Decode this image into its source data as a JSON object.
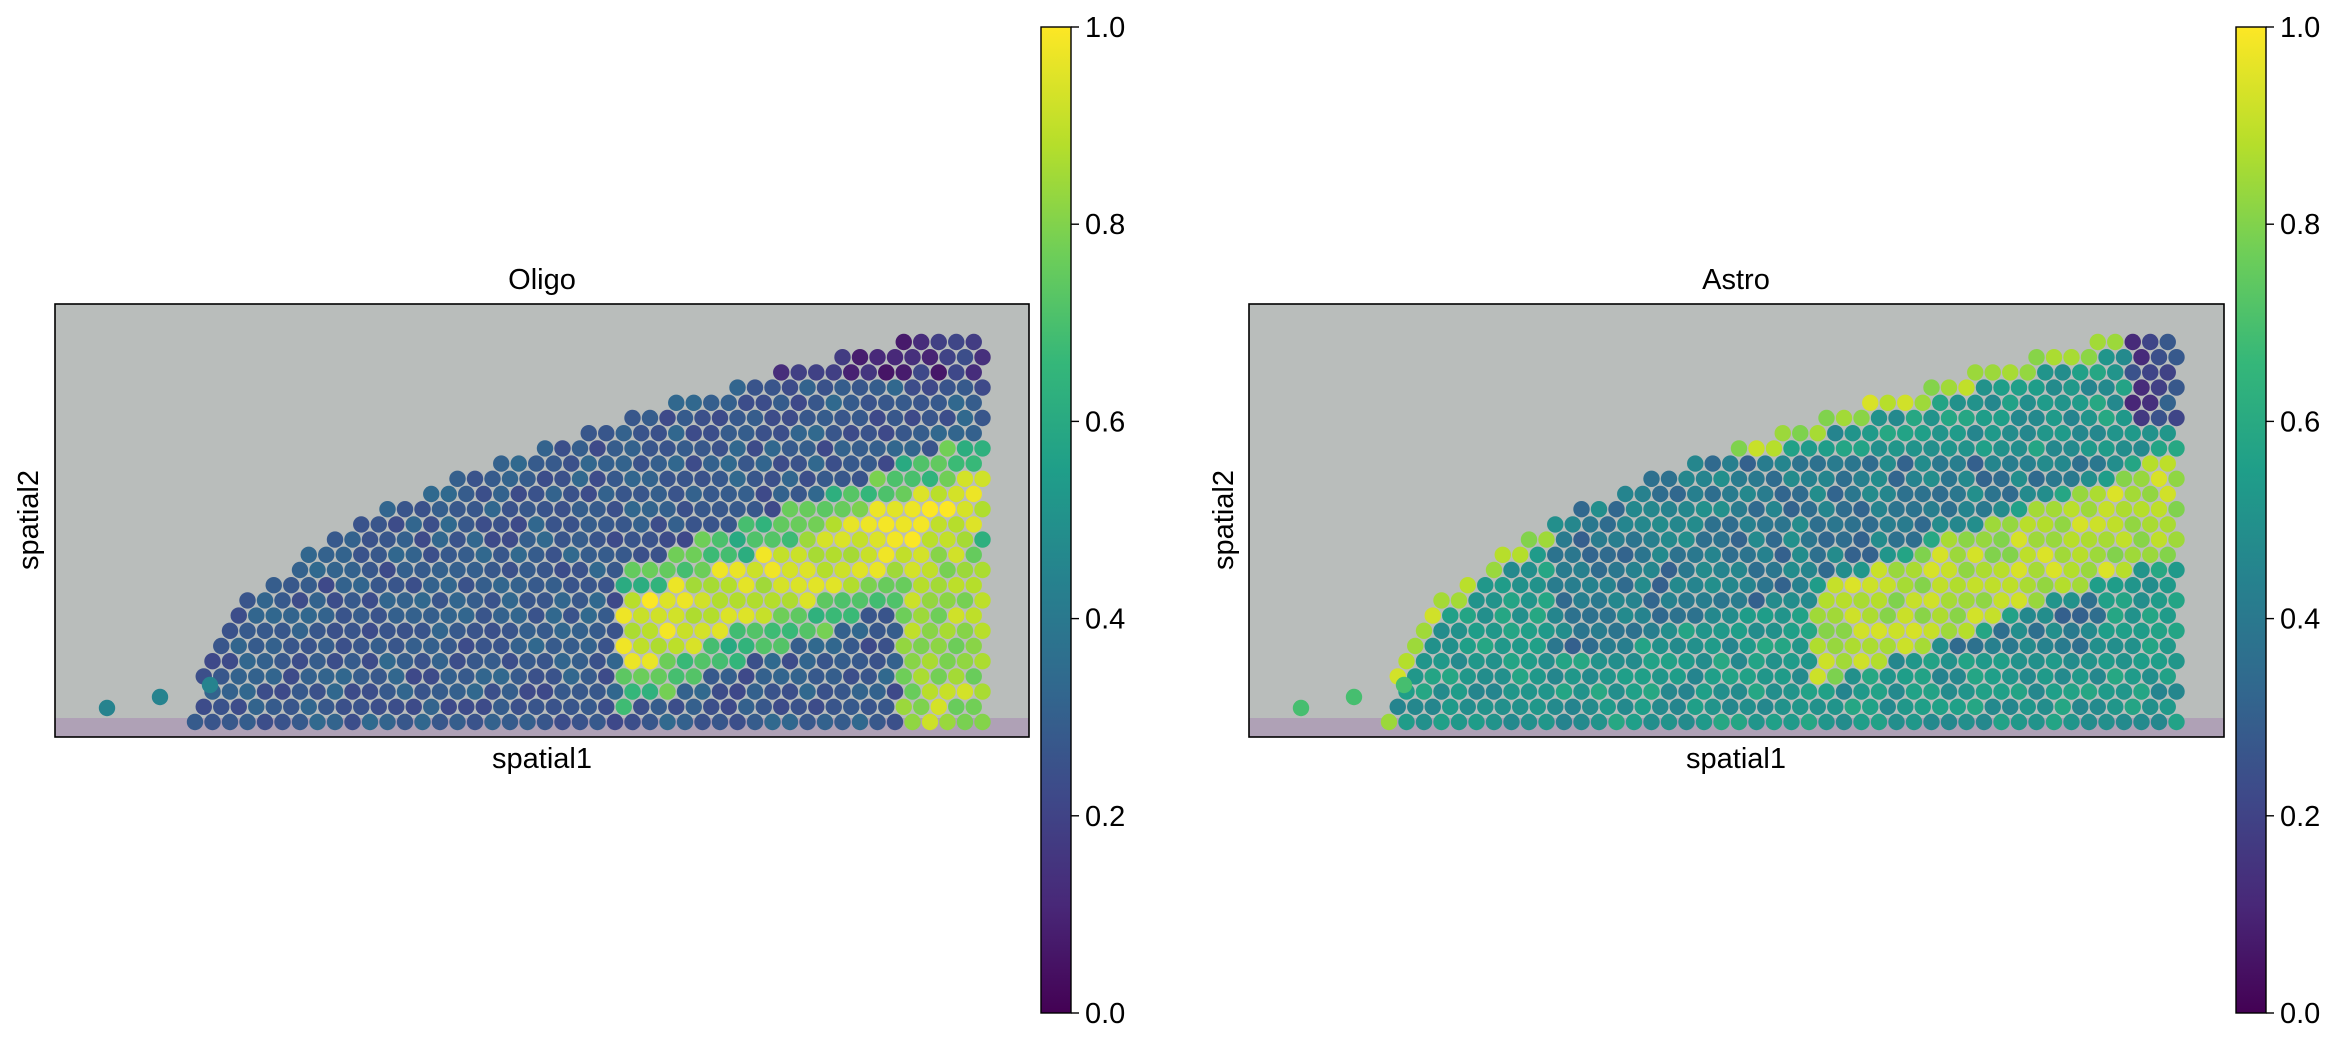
{
  "chart_data": [
    {
      "type": "heatmap",
      "title": "Oligo",
      "xlabel": "spatial1",
      "ylabel": "spatial2",
      "colormap": "viridis",
      "colorbar": {
        "min": 0.0,
        "max": 1.0,
        "ticks": [
          "0.0",
          "0.2",
          "0.4",
          "0.6",
          "0.8",
          "1.0"
        ]
      },
      "x": [],
      "y": [],
      "grid": false,
      "background": "tissue-image",
      "pattern": "low values (0.1–0.3) in the upper tissue region; high values (0.8–1.0) along a diagonal band in the lower-right and along the right edge"
    },
    {
      "type": "heatmap",
      "title": "Astro",
      "xlabel": "spatial1",
      "ylabel": "spatial2",
      "colormap": "viridis",
      "colorbar": {
        "min": 0.0,
        "max": 1.0,
        "ticks": [
          "0.0",
          "0.2",
          "0.4",
          "0.6",
          "0.8",
          "1.0"
        ]
      },
      "x": [],
      "y": [],
      "grid": false,
      "background": "tissue-image",
      "pattern": "high values (0.8–1.0) along the curved upper tissue boundary and in the lower-right band; moderate values (0.4–0.6) in the interior; a few low spots near the top-right"
    }
  ],
  "colors": {
    "axes_frame": "#000000",
    "tissue_bg": "#b9bdbb",
    "tissue_edge": "#a46bb0",
    "viridis": [
      "#440154",
      "#482878",
      "#3e4989",
      "#31688e",
      "#26828e",
      "#1f9e89",
      "#35b779",
      "#6ece58",
      "#b5de2b",
      "#fde725"
    ]
  }
}
